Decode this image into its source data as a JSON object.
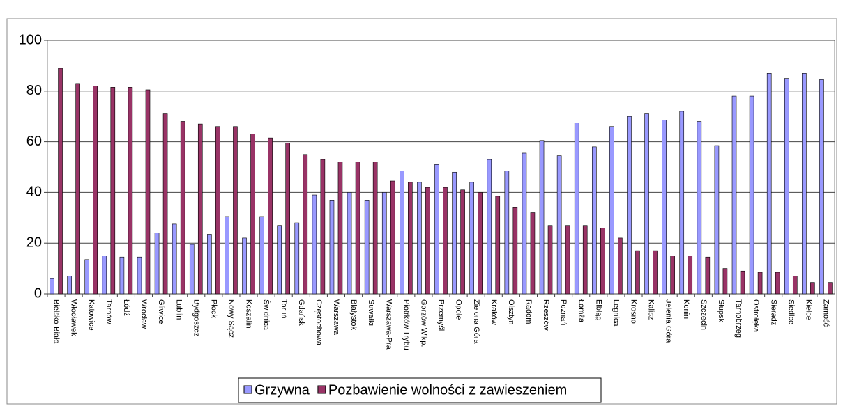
{
  "chart_data": {
    "type": "bar",
    "categories": [
      "Bielsko-Biała",
      "Włocławek",
      "Katowice",
      "Tarnów",
      "Łódź",
      "Wrocław",
      "Gliwice",
      "Lublin",
      "Bydgoszcz",
      "Płock",
      "Nowy Sącz",
      "Koszalin",
      "Świdnica",
      "Toruń",
      "Gdańsk",
      "Częstochowa",
      "Warszawa",
      "Białystok",
      "Suwałki",
      "Warszawa-Pra",
      "Piotrków Trybu",
      "Gorzów Wlkp.",
      "Przemyśl",
      "Opole",
      "Zielona Góra",
      "Kraków",
      "Olsztyn",
      "Radom",
      "Rzeszów",
      "Poznań",
      "Łomża",
      "Elbląg",
      "Legnica",
      "Krosno",
      "Kalisz",
      "Jelenia Góra",
      "Konin",
      "Szczecin",
      "Słupsk",
      "Tarnobrzeg",
      "Ostrołęka",
      "Sieradz",
      "Siedlce",
      "Kielce",
      "Zamość"
    ],
    "series": [
      {
        "name": "Grzywna",
        "color": "#9999ff",
        "values": [
          6,
          7,
          13.5,
          15,
          14.5,
          14.5,
          24,
          27.5,
          19.5,
          23.5,
          30.5,
          22,
          30.5,
          27,
          28,
          39,
          37,
          40,
          37,
          40,
          48.5,
          44,
          51,
          48,
          44,
          53,
          48.5,
          55.5,
          60.5,
          54.5,
          67.5,
          58,
          66,
          70,
          71,
          68.5,
          72,
          68,
          58.5,
          78,
          78,
          87,
          85,
          87,
          84.5
        ]
      },
      {
        "name": "Pozbawienie wolności z zawieszeniem",
        "color": "#993366",
        "values": [
          89,
          83,
          82,
          81.5,
          81.5,
          80.5,
          71,
          68,
          67,
          66,
          66,
          63,
          61.5,
          59.5,
          55,
          53,
          52,
          52,
          52,
          44.5,
          44,
          42,
          42,
          41,
          40,
          38.5,
          34,
          32,
          27,
          27,
          27,
          26,
          22,
          17,
          17,
          15,
          15,
          14.5,
          10,
          9,
          8.5,
          8.5,
          7,
          4.5,
          4.5
        ]
      }
    ],
    "ylim": [
      0,
      100
    ],
    "yticks": [
      0,
      20,
      40,
      60,
      80,
      100
    ],
    "grid": true,
    "legend": "bottom"
  }
}
